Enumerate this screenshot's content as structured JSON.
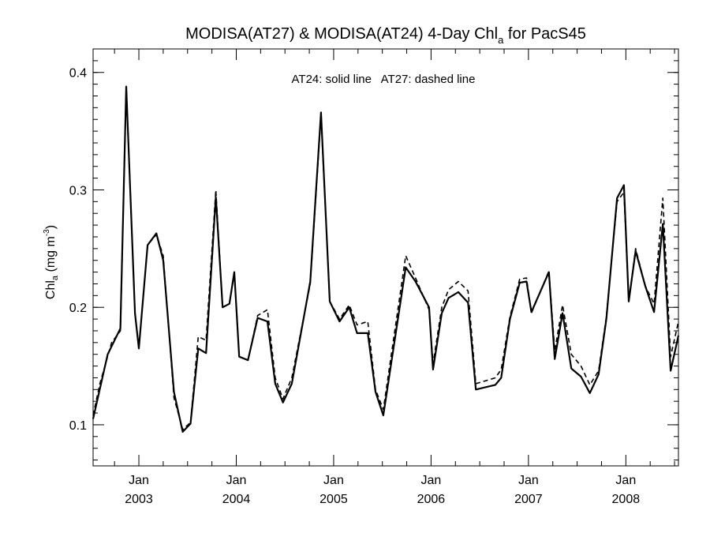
{
  "chart_data": {
    "type": "line",
    "title_main": "MODISA(AT27) & MODISA(AT24) 4-Day Chl",
    "title_sub": "a",
    "title_tail": " for PacS45",
    "ylabel_main": "Chl",
    "ylabel_sub": "a",
    "ylabel_unit": " (mg m",
    "ylabel_sup": "-3",
    "ylabel_close": ")",
    "annotation": "AT24: solid line   AT27: dashed line",
    "xlim": [
      2002.53,
      2008.54
    ],
    "ylim": [
      0.065,
      0.42
    ],
    "y_ticks": [
      {
        "value": 0.1,
        "label": "0.1"
      },
      {
        "value": 0.2,
        "label": "0.2"
      },
      {
        "value": 0.3,
        "label": "0.3"
      },
      {
        "value": 0.4,
        "label": "0.4"
      }
    ],
    "x_ticks": [
      {
        "value": 2003.0,
        "month": "Jan",
        "year": "2003"
      },
      {
        "value": 2004.0,
        "month": "Jan",
        "year": "2004"
      },
      {
        "value": 2005.0,
        "month": "Jan",
        "year": "2005"
      },
      {
        "value": 2006.0,
        "month": "Jan",
        "year": "2006"
      },
      {
        "value": 2007.0,
        "month": "Jan",
        "year": "2007"
      },
      {
        "value": 2008.0,
        "month": "Jan",
        "year": "2008"
      }
    ],
    "series": [
      {
        "style": "solid",
        "points": [
          [
            2002.53,
            0.105
          ],
          [
            2002.68,
            0.16
          ],
          [
            2002.81,
            0.182
          ],
          [
            2002.87,
            0.388
          ],
          [
            2002.96,
            0.195
          ],
          [
            2003.0,
            0.165
          ],
          [
            2003.09,
            0.253
          ],
          [
            2003.18,
            0.263
          ],
          [
            2003.25,
            0.24
          ],
          [
            2003.36,
            0.128
          ],
          [
            2003.45,
            0.094
          ],
          [
            2003.53,
            0.101
          ],
          [
            2003.61,
            0.165
          ],
          [
            2003.69,
            0.161
          ],
          [
            2003.79,
            0.294
          ],
          [
            2003.86,
            0.2
          ],
          [
            2003.93,
            0.203
          ],
          [
            2003.98,
            0.23
          ],
          [
            2004.03,
            0.158
          ],
          [
            2004.12,
            0.155
          ],
          [
            2004.22,
            0.191
          ],
          [
            2004.32,
            0.188
          ],
          [
            2004.4,
            0.135
          ],
          [
            2004.48,
            0.119
          ],
          [
            2004.57,
            0.135
          ],
          [
            2004.76,
            0.222
          ],
          [
            2004.87,
            0.366
          ],
          [
            2004.96,
            0.205
          ],
          [
            2005.06,
            0.188
          ],
          [
            2005.16,
            0.2
          ],
          [
            2005.24,
            0.178
          ],
          [
            2005.35,
            0.178
          ],
          [
            2005.43,
            0.128
          ],
          [
            2005.51,
            0.108
          ],
          [
            2005.74,
            0.234
          ],
          [
            2005.84,
            0.222
          ],
          [
            2005.98,
            0.2
          ],
          [
            2006.02,
            0.147
          ],
          [
            2006.11,
            0.195
          ],
          [
            2006.18,
            0.208
          ],
          [
            2006.28,
            0.213
          ],
          [
            2006.38,
            0.204
          ],
          [
            2006.46,
            0.13
          ],
          [
            2006.66,
            0.134
          ],
          [
            2006.72,
            0.14
          ],
          [
            2006.81,
            0.19
          ],
          [
            2006.91,
            0.221
          ],
          [
            2006.98,
            0.222
          ],
          [
            2007.03,
            0.196
          ],
          [
            2007.21,
            0.23
          ],
          [
            2007.27,
            0.156
          ],
          [
            2007.35,
            0.195
          ],
          [
            2007.44,
            0.148
          ],
          [
            2007.54,
            0.141
          ],
          [
            2007.63,
            0.127
          ],
          [
            2007.72,
            0.143
          ],
          [
            2007.8,
            0.19
          ],
          [
            2007.91,
            0.293
          ],
          [
            2007.98,
            0.304
          ],
          [
            2008.03,
            0.205
          ],
          [
            2008.1,
            0.248
          ],
          [
            2008.2,
            0.218
          ],
          [
            2008.29,
            0.196
          ],
          [
            2008.38,
            0.271
          ],
          [
            2008.46,
            0.146
          ],
          [
            2008.54,
            0.176
          ]
        ]
      },
      {
        "style": "dashed",
        "points": [
          [
            2002.53,
            0.108
          ],
          [
            2002.6,
            0.135
          ],
          [
            2002.72,
            0.17
          ],
          [
            2002.81,
            0.18
          ],
          [
            2002.87,
            0.388
          ],
          [
            2002.96,
            0.195
          ],
          [
            2003.0,
            0.165
          ],
          [
            2003.09,
            0.253
          ],
          [
            2003.18,
            0.262
          ],
          [
            2003.25,
            0.244
          ],
          [
            2003.36,
            0.123
          ],
          [
            2003.45,
            0.096
          ],
          [
            2003.53,
            0.102
          ],
          [
            2003.61,
            0.175
          ],
          [
            2003.69,
            0.172
          ],
          [
            2003.79,
            0.3
          ],
          [
            2003.86,
            0.2
          ],
          [
            2003.93,
            0.203
          ],
          [
            2003.98,
            0.229
          ],
          [
            2004.03,
            0.158
          ],
          [
            2004.12,
            0.155
          ],
          [
            2004.22,
            0.193
          ],
          [
            2004.32,
            0.198
          ],
          [
            2004.4,
            0.14
          ],
          [
            2004.48,
            0.122
          ],
          [
            2004.57,
            0.14
          ],
          [
            2004.76,
            0.22
          ],
          [
            2004.87,
            0.363
          ],
          [
            2004.96,
            0.205
          ],
          [
            2005.06,
            0.19
          ],
          [
            2005.16,
            0.202
          ],
          [
            2005.24,
            0.185
          ],
          [
            2005.35,
            0.188
          ],
          [
            2005.43,
            0.13
          ],
          [
            2005.51,
            0.113
          ],
          [
            2005.74,
            0.244
          ],
          [
            2005.84,
            0.225
          ],
          [
            2005.98,
            0.198
          ],
          [
            2006.02,
            0.152
          ],
          [
            2006.11,
            0.2
          ],
          [
            2006.18,
            0.215
          ],
          [
            2006.28,
            0.222
          ],
          [
            2006.38,
            0.214
          ],
          [
            2006.46,
            0.135
          ],
          [
            2006.66,
            0.14
          ],
          [
            2006.72,
            0.147
          ],
          [
            2006.81,
            0.192
          ],
          [
            2006.91,
            0.224
          ],
          [
            2006.98,
            0.225
          ],
          [
            2007.03,
            0.195
          ],
          [
            2007.21,
            0.231
          ],
          [
            2007.27,
            0.163
          ],
          [
            2007.35,
            0.202
          ],
          [
            2007.44,
            0.16
          ],
          [
            2007.54,
            0.15
          ],
          [
            2007.63,
            0.134
          ],
          [
            2007.72,
            0.146
          ],
          [
            2007.8,
            0.192
          ],
          [
            2007.91,
            0.29
          ],
          [
            2007.98,
            0.298
          ],
          [
            2008.03,
            0.205
          ],
          [
            2008.1,
            0.25
          ],
          [
            2008.2,
            0.218
          ],
          [
            2008.29,
            0.203
          ],
          [
            2008.38,
            0.293
          ],
          [
            2008.46,
            0.158
          ],
          [
            2008.54,
            0.188
          ]
        ]
      }
    ]
  }
}
